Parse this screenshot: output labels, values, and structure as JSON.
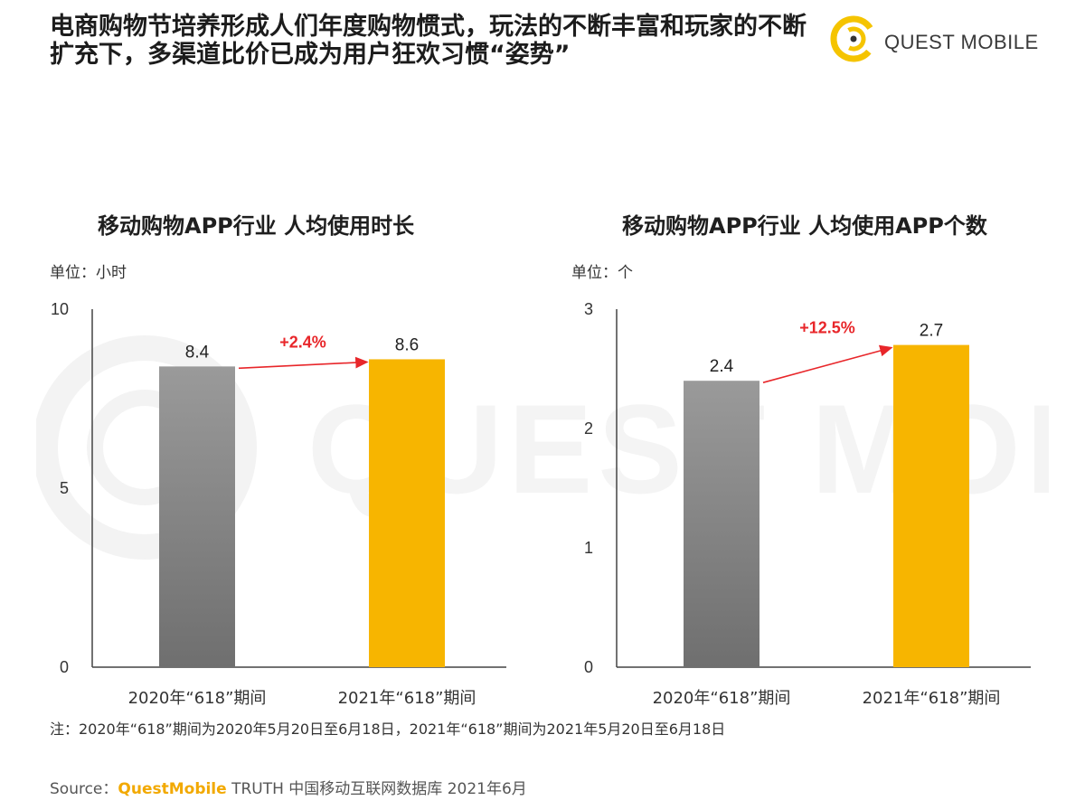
{
  "header": {
    "title": "电商购物节培养形成人们年度购物惯式，玩法的不断丰富和玩家的不断扩充下，多渠道比价已成为用户狂欢习惯“姿势”",
    "logo_text": "QUEST MOBILE",
    "watermark_text": "QUEST MOBILE"
  },
  "colors": {
    "gray_bar": "#8c8c8c",
    "gold_bar": "#f7b500",
    "growth_arrow": "#e8262a",
    "axis": "#444444",
    "brand": "#f2a900"
  },
  "chart_data": [
    {
      "type": "bar",
      "title": "移动购物APP行业 人均使用时长",
      "unit_label": "单位：小时",
      "categories": [
        "2020年“618”期间",
        "2021年“618”期间"
      ],
      "values": [
        8.4,
        8.6
      ],
      "value_labels": [
        "8.4",
        "8.6"
      ],
      "ylim": [
        0,
        10
      ],
      "yticks": [
        0,
        5,
        10
      ],
      "growth_label": "+2.4%",
      "grid": false
    },
    {
      "type": "bar",
      "title": "移动购物APP行业 人均使用APP个数",
      "unit_label": "单位：个",
      "categories": [
        "2020年“618”期间",
        "2021年“618”期间"
      ],
      "values": [
        2.4,
        2.7
      ],
      "value_labels": [
        "2.4",
        "2.7"
      ],
      "ylim": [
        0,
        3
      ],
      "yticks": [
        0,
        1,
        2,
        3
      ],
      "growth_label": "+12.5%",
      "grid": false
    }
  ],
  "footer": {
    "note": "注：2020年“618”期间为2020年5月20日至6月18日，2021年“618”期间为2021年5月20日至6月18日",
    "source_prefix": "Source：",
    "source_brand": "QuestMobile",
    "source_rest": " TRUTH 中国移动互联网数据库 2021年6月"
  }
}
